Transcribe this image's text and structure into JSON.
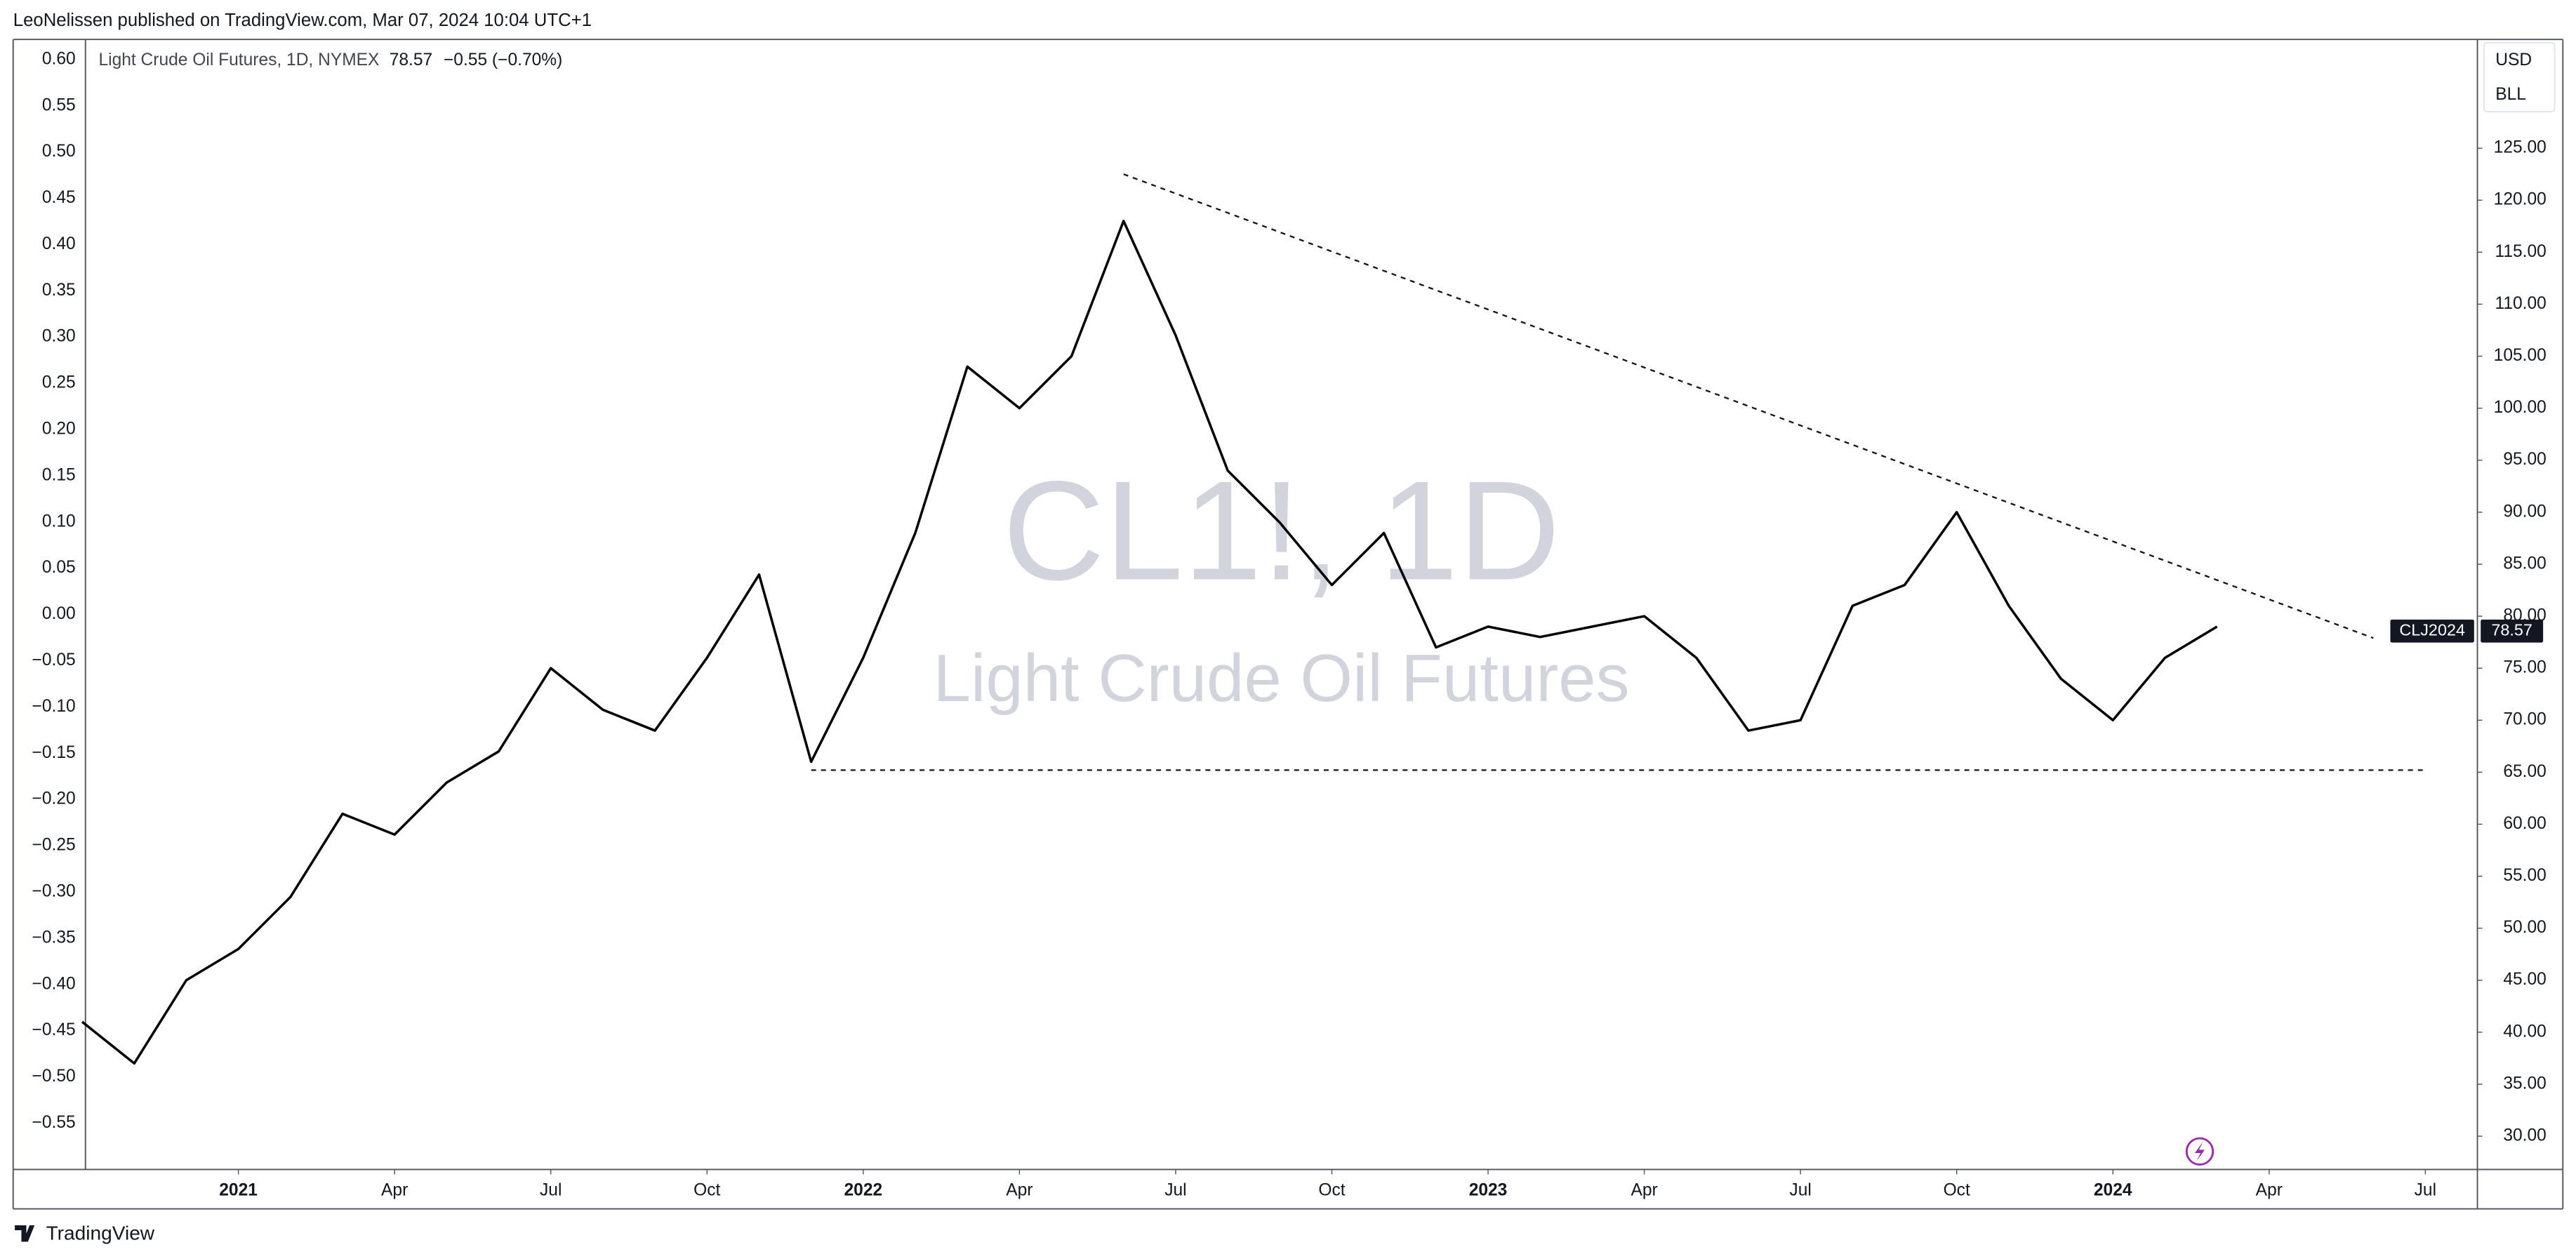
{
  "header": {
    "published": "LeoNelissen published on TradingView.com, Mar 07, 2024 10:04 UTC+1",
    "brand": "TradingView"
  },
  "legend": {
    "title": "Light Crude Oil Futures, 1D, NYMEX",
    "price": "78.57",
    "change": "−0.55 (−0.70%)"
  },
  "watermark": {
    "symbol": "CL1!, 1D",
    "name": "Light Crude Oil Futures"
  },
  "scale_buttons": [
    "USD",
    "BLL"
  ],
  "chart_data": {
    "type": "line",
    "x": [
      "2020-10",
      "2020-11",
      "2020-12",
      "2021-01",
      "2021-02",
      "2021-03",
      "2021-04",
      "2021-05",
      "2021-06",
      "2021-07",
      "2021-08",
      "2021-09",
      "2021-10",
      "2021-11",
      "2021-12",
      "2022-01",
      "2022-02",
      "2022-03",
      "2022-04",
      "2022-05",
      "2022-06",
      "2022-07",
      "2022-08",
      "2022-09",
      "2022-10",
      "2022-11",
      "2022-12",
      "2023-01",
      "2023-02",
      "2023-03",
      "2023-04",
      "2023-05",
      "2023-06",
      "2023-07",
      "2023-08",
      "2023-09",
      "2023-10",
      "2023-11",
      "2023-12",
      "2024-01",
      "2024-02",
      "2024-03"
    ],
    "series": [
      {
        "name": "CL1!",
        "color": "#000000",
        "axis": "y2",
        "values": [
          41,
          37,
          45,
          48,
          53,
          61,
          59,
          64,
          67,
          75,
          71,
          69,
          76,
          84,
          66,
          76,
          88,
          104,
          100,
          105,
          118,
          107,
          94,
          89,
          83,
          88,
          77,
          79,
          78,
          79,
          80,
          76,
          69,
          70,
          81,
          83,
          90,
          81,
          74,
          70,
          76,
          79
        ]
      }
    ],
    "xlim": [
      "2020-10",
      "2024-08"
    ],
    "xticks": [
      {
        "value": "2021-01",
        "label": "2021"
      },
      {
        "value": "2021-04",
        "label": "Apr"
      },
      {
        "value": "2021-07",
        "label": "Jul"
      },
      {
        "value": "2021-10",
        "label": "Oct"
      },
      {
        "value": "2022-01",
        "label": "2022"
      },
      {
        "value": "2022-04",
        "label": "Apr"
      },
      {
        "value": "2022-07",
        "label": "Jul"
      },
      {
        "value": "2022-10",
        "label": "Oct"
      },
      {
        "value": "2023-01",
        "label": "2023"
      },
      {
        "value": "2023-04",
        "label": "Apr"
      },
      {
        "value": "2023-07",
        "label": "Jul"
      },
      {
        "value": "2023-10",
        "label": "Oct"
      },
      {
        "value": "2024-01",
        "label": "2024"
      },
      {
        "value": "2024-04",
        "label": "Apr"
      },
      {
        "value": "2024-07",
        "label": "Jul"
      }
    ],
    "ylim": [
      -0.6,
      0.62
    ],
    "yticks": [
      {
        "value": 0.6,
        "label": "0.60"
      },
      {
        "value": 0.55,
        "label": "0.55"
      },
      {
        "value": 0.5,
        "label": "0.50"
      },
      {
        "value": 0.45,
        "label": "0.45"
      },
      {
        "value": 0.4,
        "label": "0.40"
      },
      {
        "value": 0.35,
        "label": "0.35"
      },
      {
        "value": 0.3,
        "label": "0.30"
      },
      {
        "value": 0.25,
        "label": "0.25"
      },
      {
        "value": 0.2,
        "label": "0.20"
      },
      {
        "value": 0.15,
        "label": "0.15"
      },
      {
        "value": 0.1,
        "label": "0.10"
      },
      {
        "value": 0.05,
        "label": "0.05"
      },
      {
        "value": 0,
        "label": "0.00"
      },
      {
        "value": -0.05,
        "label": "−0.05"
      },
      {
        "value": -0.1,
        "label": "−0.10"
      },
      {
        "value": -0.15,
        "label": "−0.15"
      },
      {
        "value": -0.2,
        "label": "−0.20"
      },
      {
        "value": -0.25,
        "label": "−0.25"
      },
      {
        "value": -0.3,
        "label": "−0.30"
      },
      {
        "value": -0.35,
        "label": "−0.35"
      },
      {
        "value": -0.4,
        "label": "−0.40"
      },
      {
        "value": -0.45,
        "label": "−0.45"
      },
      {
        "value": -0.5,
        "label": "−0.50"
      },
      {
        "value": -0.55,
        "label": "−0.55"
      }
    ],
    "y2lim": [
      26.8,
      135.3
    ],
    "y2ticks": [
      {
        "value": 125,
        "label": "125.00"
      },
      {
        "value": 120,
        "label": "120.00"
      },
      {
        "value": 115,
        "label": "115.00"
      },
      {
        "value": 110,
        "label": "110.00"
      },
      {
        "value": 105,
        "label": "105.00"
      },
      {
        "value": 100,
        "label": "100.00"
      },
      {
        "value": 95,
        "label": "95.00"
      },
      {
        "value": 90,
        "label": "90.00"
      },
      {
        "value": 85,
        "label": "85.00"
      },
      {
        "value": 80,
        "label": "80.00"
      },
      {
        "value": 75,
        "label": "75.00"
      },
      {
        "value": 70,
        "label": "70.00"
      },
      {
        "value": 65,
        "label": "65.00"
      },
      {
        "value": 60,
        "label": "60.00"
      },
      {
        "value": 55,
        "label": "55.00"
      },
      {
        "value": 50,
        "label": "50.00"
      },
      {
        "value": 45,
        "label": "45.00"
      },
      {
        "value": 40,
        "label": "40.00"
      },
      {
        "value": 35,
        "label": "35.00"
      },
      {
        "value": 30,
        "label": "30.00"
      }
    ],
    "grid": false,
    "drawings": [
      {
        "x": [
          "2022-06",
          "2024-06"
        ],
        "y": [
          122.5,
          77.9
        ]
      },
      {
        "x": [
          "2021-12",
          "2024-07"
        ],
        "y": [
          65.2,
          65.2
        ]
      }
    ],
    "price_label": {
      "symbol": "CLJ2024",
      "value": 78.57
    }
  }
}
